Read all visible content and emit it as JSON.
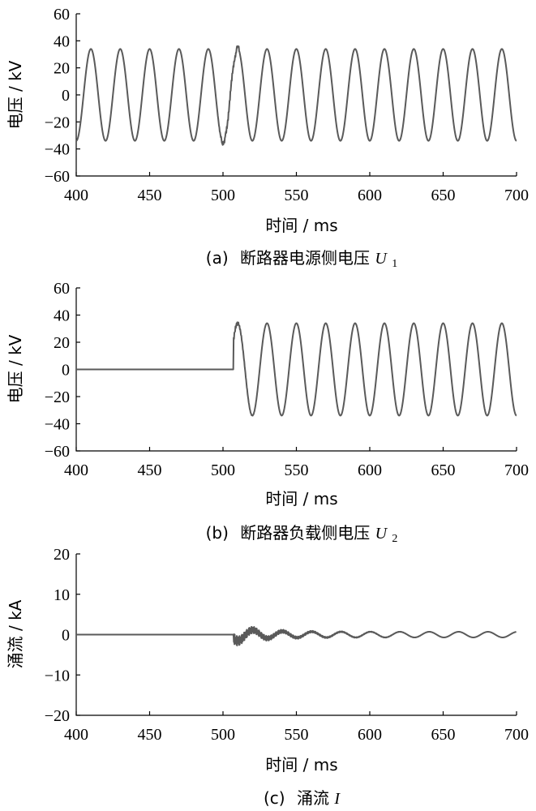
{
  "chart_data": [
    {
      "type": "line",
      "ylabel": "电压 / kV",
      "xlabel": "时间 / ms",
      "caption_prefix": "(a)",
      "caption_text": "断路器电源侧电压",
      "caption_symbol": "U",
      "caption_subscript": "1",
      "xlim": [
        400,
        700
      ],
      "ylim": [
        -60,
        60
      ],
      "xticks": [
        "400",
        "450",
        "500",
        "550",
        "600",
        "650",
        "700"
      ],
      "yticks": [
        "60",
        "40",
        "20",
        "0",
        "−20",
        "−40",
        "−60"
      ],
      "series": [
        {
          "kind": "source_voltage",
          "amplitude_kV": 34,
          "frequency_Hz": 50,
          "peaks_ms": [
            410,
            430,
            450,
            470,
            490,
            510,
            530,
            550,
            570,
            590,
            610,
            630,
            650,
            670,
            690
          ],
          "troughs_ms": [
            400,
            420,
            440,
            460,
            480,
            500,
            520,
            540,
            560,
            580,
            600,
            620,
            640,
            660,
            680
          ],
          "disturbance_ms": [
            496,
            512
          ],
          "min_kV": -37,
          "max_kV": 36,
          "end_value_kV": -29
        }
      ]
    },
    {
      "type": "line",
      "ylabel": "电压 / kV",
      "xlabel": "时间 / ms",
      "caption_prefix": "(b)",
      "caption_text": "断路器负载侧电压",
      "caption_symbol": "U",
      "caption_subscript": "2",
      "xlim": [
        400,
        700
      ],
      "ylim": [
        -60,
        60
      ],
      "xticks": [
        "400",
        "450",
        "500",
        "550",
        "600",
        "650",
        "700"
      ],
      "yticks": [
        "60",
        "40",
        "20",
        "0",
        "−20",
        "−40",
        "−60"
      ],
      "series": [
        {
          "kind": "load_voltage",
          "amplitude_kV": 34,
          "frequency_Hz": 50,
          "zero_until_ms": 507,
          "first_peak_ms": 510,
          "first_peak_kV": 36,
          "end_value_kV": -29
        }
      ]
    },
    {
      "type": "line",
      "ylabel": "涌流 / kA",
      "xlabel": "时间 / ms",
      "caption_prefix": "(c)",
      "caption_text": "涌流",
      "caption_symbol": "I",
      "caption_subscript": "",
      "xlim": [
        400,
        700
      ],
      "ylim": [
        -20,
        20
      ],
      "xticks": [
        "400",
        "450",
        "500",
        "550",
        "600",
        "650",
        "700"
      ],
      "yticks": [
        "20",
        "10",
        "0",
        "−10",
        "−20"
      ],
      "series": [
        {
          "kind": "inrush_current",
          "zero_until_ms": 507,
          "initial_peak_kA": 2.5,
          "settled_amplitude_kA": 0.7,
          "hf_band_kA": 1.3,
          "frequency_Hz": 50
        }
      ]
    }
  ]
}
